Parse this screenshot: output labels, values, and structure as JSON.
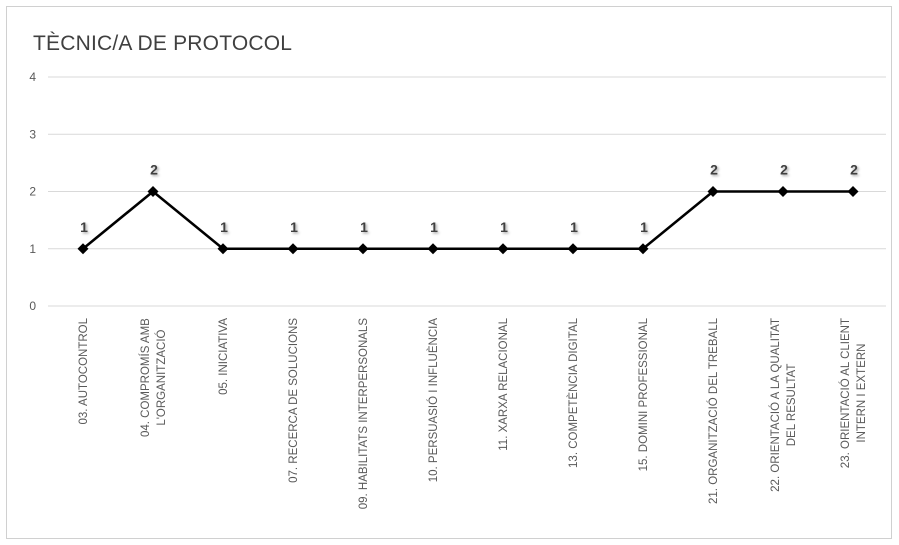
{
  "chart_data": {
    "type": "line",
    "title": "TÈCNIC/A DE PROTOCOL",
    "xlabel": "",
    "ylabel": "",
    "ylim": [
      0,
      4
    ],
    "yticks": [
      "0",
      "1",
      "2",
      "3",
      "4"
    ],
    "grid": true,
    "legend": "none",
    "categories": [
      [
        "03. AUTOCONTROL"
      ],
      [
        "04. COMPROMÍS AMB",
        "L'ORGANITZACIÓ"
      ],
      [
        "05. INICIATIVA"
      ],
      [
        "07. RECERCA DE SOLUCIONS"
      ],
      [
        "09. HABILITATS INTERPERSONALS"
      ],
      [
        "10. PERSUASIÓ I INFLUÈNCIA"
      ],
      [
        "11. XARXA RELACIONAL"
      ],
      [
        "13. COMPETÈNCIA DIGITAL"
      ],
      [
        "15. DOMINI PROFESSIONAL"
      ],
      [
        "21. ORGANITZACIÓ DEL TREBALL"
      ],
      [
        "22. ORIENTACIÓ A LA QUALITAT",
        "DEL RESULTAT"
      ],
      [
        "23. ORIENTACIÓ AL CLIENT",
        "INTERN I EXTERN"
      ]
    ],
    "series": [
      {
        "values": [
          1,
          2,
          1,
          1,
          1,
          1,
          1,
          1,
          1,
          2,
          2,
          2
        ],
        "data_labels": [
          "1",
          "2",
          "1",
          "1",
          "1",
          "1",
          "1",
          "1",
          "1",
          "2",
          "2",
          "2"
        ]
      }
    ],
    "colors": {
      "line": "#000000",
      "grid": "#d9d9d9",
      "tick_text": "#595959",
      "label_text": "#404040"
    }
  }
}
